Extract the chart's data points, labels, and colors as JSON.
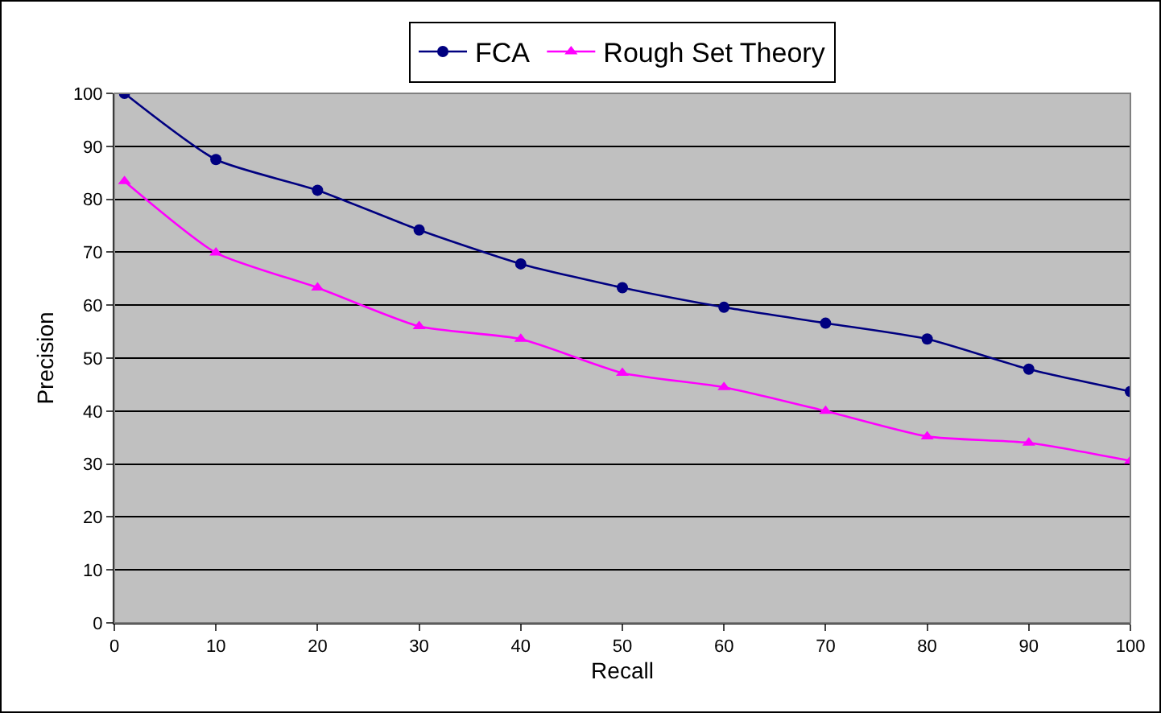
{
  "chart_data": {
    "type": "line",
    "xlabel": "Recall",
    "ylabel": "Precision",
    "x": [
      1,
      10,
      20,
      30,
      40,
      50,
      60,
      70,
      80,
      90,
      100
    ],
    "series": [
      {
        "name": "FCA",
        "color": "#000080",
        "marker": "circle",
        "values": [
          100,
          87.5,
          81.7,
          74.2,
          67.8,
          63.3,
          59.6,
          56.6,
          53.6,
          47.9,
          43.7
        ]
      },
      {
        "name": "Rough Set Theory",
        "color": "#ff00ff",
        "marker": "triangle",
        "values": [
          83.4,
          69.9,
          63.3,
          56.0,
          53.6,
          47.2,
          44.5,
          40.0,
          35.2,
          34.0,
          30.6
        ]
      }
    ],
    "xlim": [
      0,
      100
    ],
    "xticks": [
      0,
      10,
      20,
      30,
      40,
      50,
      60,
      70,
      80,
      90,
      100
    ],
    "ylim": [
      0,
      100
    ],
    "yticks": [
      0,
      10,
      20,
      30,
      40,
      50,
      60,
      70,
      80,
      90,
      100
    ],
    "grid": "y",
    "legend": "top",
    "line_style": "solid"
  }
}
